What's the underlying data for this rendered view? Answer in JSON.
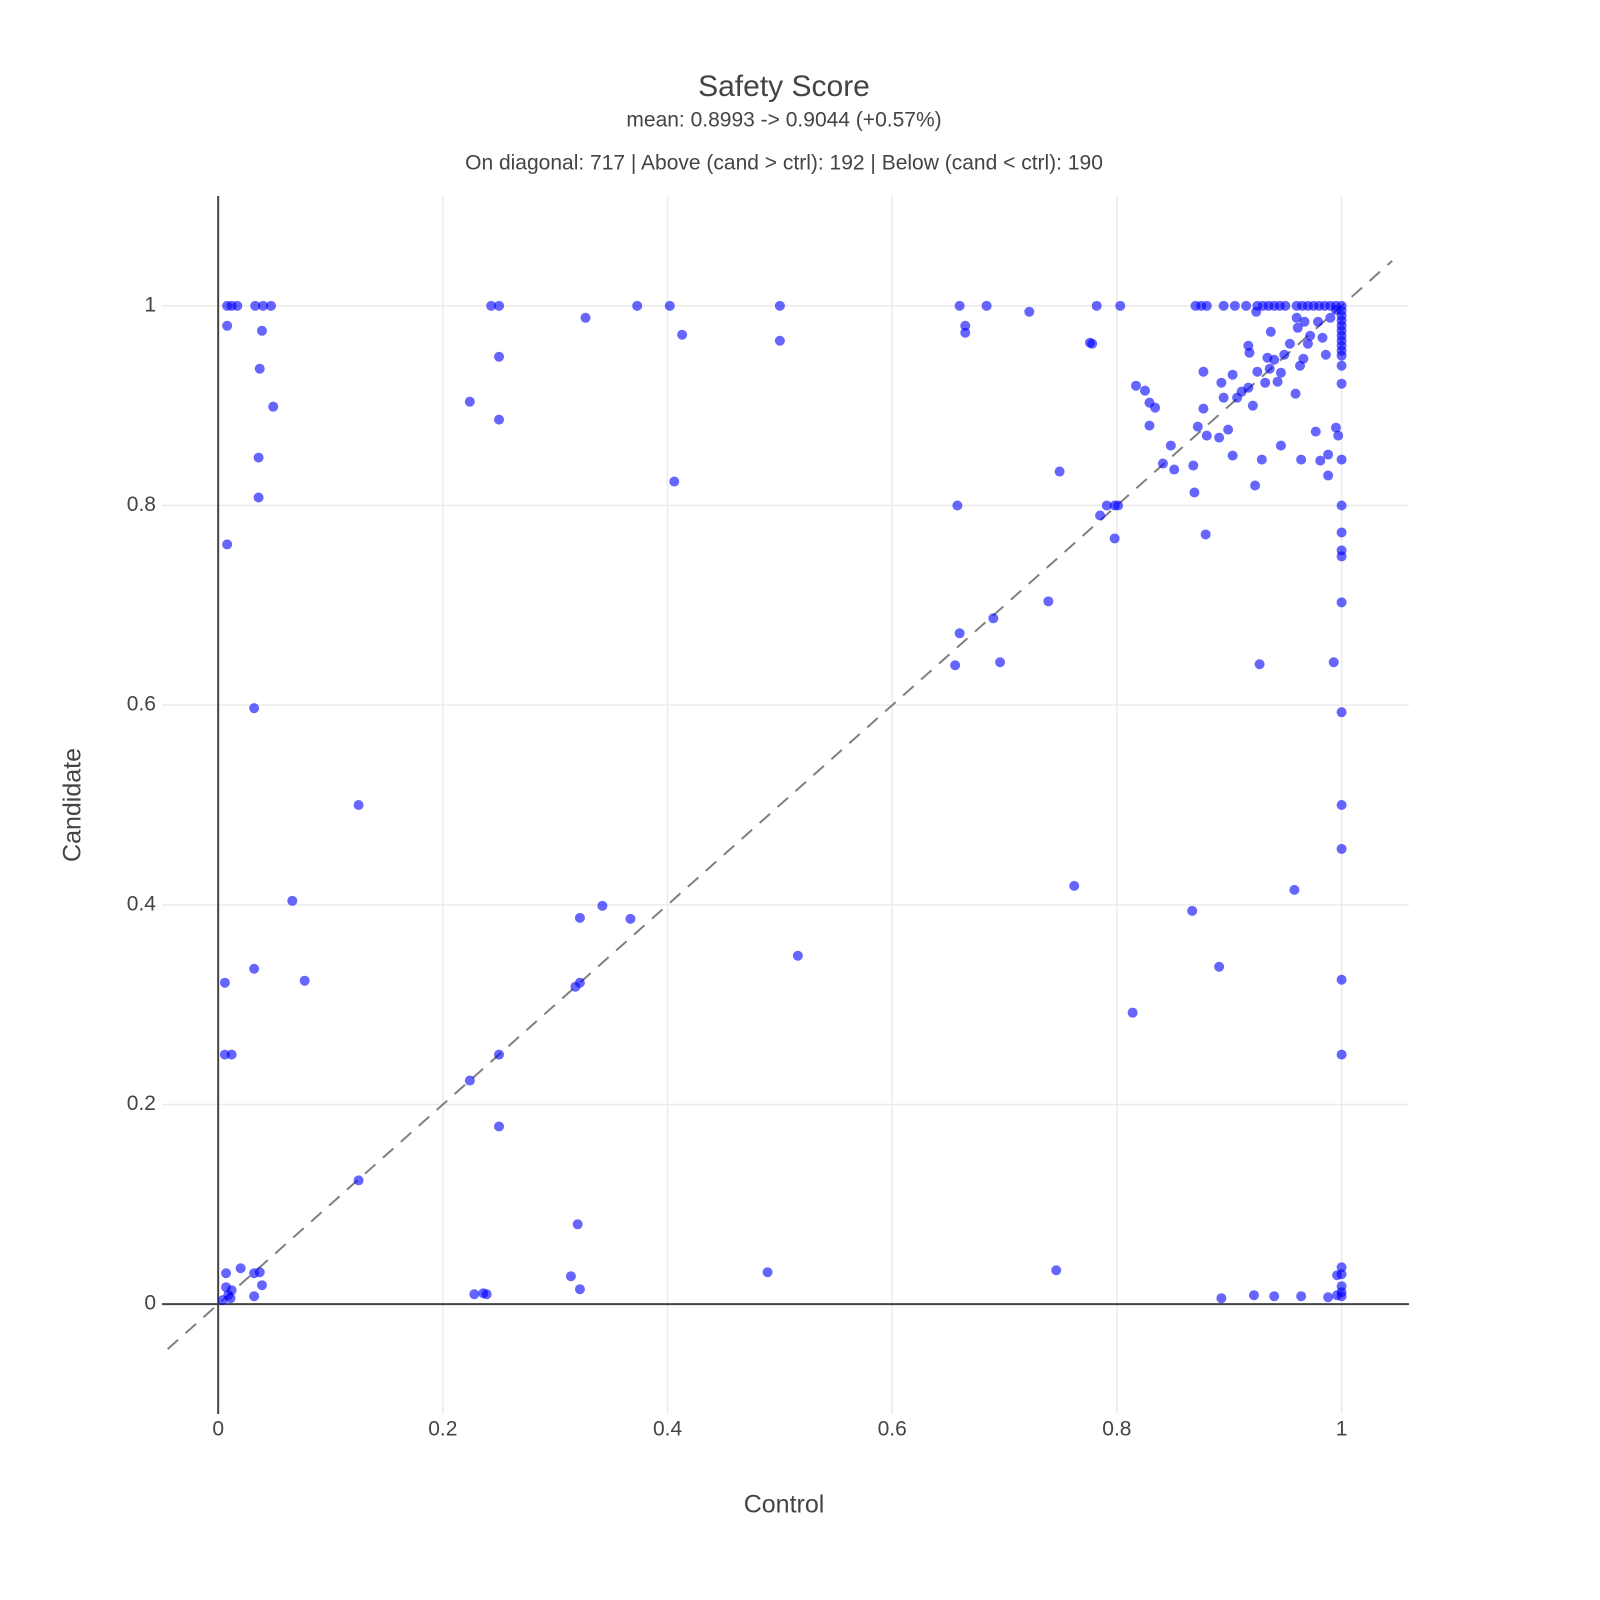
{
  "chart_data": {
    "type": "scatter",
    "title": "Safety Score",
    "subtitle": "mean: 0.8993 -> 0.9044 (+0.57%)",
    "annotation": "On diagonal: 717 | Above (cand > ctrl): 192 | Below (cand < ctrl): 190",
    "x_label": "Control",
    "y_label": "Candidate",
    "xlim": [
      -0.05,
      1.06
    ],
    "ylim": [
      -0.11,
      1.11
    ],
    "xticks": [
      0,
      0.2,
      0.4,
      0.6,
      0.8,
      1
    ],
    "yticks": [
      0,
      0.2,
      0.4,
      0.6,
      0.8,
      1
    ],
    "grid": true,
    "reference_line": {
      "x": [
        -0.045,
        1.045
      ],
      "y": [
        -0.045,
        1.045
      ],
      "color": "#808080"
    },
    "series": [
      {
        "color": "#0000ff",
        "x": [
          0.008,
          0.012,
          0.017,
          0.033,
          0.04,
          0.047,
          0.243,
          0.25,
          0.373,
          0.402,
          0.5,
          0.66,
          0.684,
          0.782,
          0.803,
          0.87,
          0.875,
          0.88,
          0.895,
          0.905,
          0.915,
          0.925,
          0.93,
          0.935,
          0.94,
          0.945,
          0.95,
          0.96,
          0.965,
          0.97,
          0.975,
          0.98,
          0.985,
          0.99,
          0.995,
          1,
          1,
          1,
          1,
          1,
          1,
          1,
          1,
          1,
          1,
          1,
          1,
          1,
          1,
          1,
          1,
          1,
          1,
          1,
          1,
          1,
          1,
          1,
          1,
          1,
          1,
          1,
          1,
          1,
          0.008,
          0.039,
          0.037,
          0.049,
          0.036,
          0.036,
          0.008,
          0.032,
          0.125,
          0.066,
          0.032,
          0.077,
          0.006,
          0.006,
          0.012,
          0.125,
          0.02,
          0.007,
          0.032,
          0.037,
          0.039,
          0.032,
          0.007,
          0.009,
          0.004,
          0.012,
          0.011,
          0.327,
          0.25,
          0.224,
          0.25,
          0.413,
          0.406,
          0.5,
          0.665,
          0.665,
          0.722,
          0.776,
          0.778,
          0.749,
          0.658,
          0.785,
          0.791,
          0.798,
          0.801,
          0.798,
          0.739,
          0.66,
          0.69,
          0.656,
          0.696,
          0.817,
          0.825,
          0.829,
          0.834,
          0.829,
          0.848,
          0.841,
          0.851,
          0.868,
          0.869,
          0.872,
          0.88,
          0.877,
          0.877,
          0.879,
          0.891,
          0.899,
          0.903,
          0.893,
          0.895,
          0.903,
          0.907,
          0.911,
          0.917,
          0.921,
          0.923,
          0.929,
          0.927,
          0.917,
          0.918,
          0.925,
          0.932,
          0.934,
          0.936,
          0.94,
          0.943,
          0.946,
          0.949,
          0.946,
          0.954,
          0.959,
          0.963,
          0.964,
          0.966,
          0.97,
          0.977,
          0.981,
          0.988,
          0.988,
          0.995,
          0.997,
          0.986,
          0.993,
          0.924,
          0.937,
          0.961,
          0.972,
          0.979,
          0.983,
          0.99,
          0.995,
          0.96,
          0.967,
          0.762,
          0.958,
          0.867,
          0.891,
          0.814,
          0.516,
          0.322,
          0.342,
          0.367,
          0.318,
          0.322,
          0.25,
          0.224,
          0.25,
          0.32,
          0.314,
          0.322,
          0.228,
          0.236,
          0.239,
          0.489,
          0.746,
          0.893,
          0.922,
          0.94,
          0.964,
          0.988,
          0.996,
          0.996
        ],
        "y": [
          1,
          1,
          1,
          1,
          1,
          1,
          1,
          1,
          1,
          1,
          1,
          1,
          1,
          1,
          1,
          1,
          1,
          1,
          1,
          1,
          1,
          1,
          1,
          1,
          1,
          1,
          1,
          1,
          1,
          1,
          1,
          1,
          1,
          1,
          1,
          1,
          0.995,
          0.99,
          0.985,
          0.98,
          0.975,
          0.97,
          0.965,
          0.96,
          0.955,
          0.95,
          0.94,
          0.922,
          0.846,
          0.8,
          0.773,
          0.755,
          0.749,
          0.703,
          0.593,
          0.5,
          0.456,
          0.325,
          0.25,
          0.037,
          0.03,
          0.018,
          0.012,
          0.008,
          0.98,
          0.975,
          0.937,
          0.899,
          0.848,
          0.808,
          0.761,
          0.597,
          0.5,
          0.404,
          0.336,
          0.324,
          0.322,
          0.25,
          0.25,
          0.124,
          0.036,
          0.031,
          0.031,
          0.032,
          0.019,
          0.008,
          0.017,
          0.009,
          0.004,
          0.014,
          0.006,
          0.988,
          0.949,
          0.904,
          0.886,
          0.971,
          0.824,
          0.965,
          0.98,
          0.973,
          0.994,
          0.963,
          0.962,
          0.834,
          0.8,
          0.79,
          0.8,
          0.8,
          0.8,
          0.767,
          0.704,
          0.672,
          0.687,
          0.64,
          0.643,
          0.92,
          0.915,
          0.903,
          0.898,
          0.88,
          0.86,
          0.842,
          0.836,
          0.84,
          0.813,
          0.879,
          0.87,
          0.897,
          0.934,
          0.771,
          0.868,
          0.876,
          0.85,
          0.923,
          0.908,
          0.931,
          0.908,
          0.914,
          0.918,
          0.9,
          0.82,
          0.846,
          0.641,
          0.96,
          0.953,
          0.934,
          0.923,
          0.948,
          0.937,
          0.946,
          0.924,
          0.933,
          0.951,
          0.86,
          0.962,
          0.912,
          0.94,
          0.846,
          0.947,
          0.962,
          0.874,
          0.845,
          0.851,
          0.83,
          0.878,
          0.87,
          0.951,
          0.643,
          0.994,
          0.974,
          0.978,
          0.97,
          0.984,
          0.968,
          0.988,
          0.996,
          0.988,
          0.984,
          0.419,
          0.415,
          0.394,
          0.338,
          0.292,
          0.349,
          0.387,
          0.399,
          0.386,
          0.318,
          0.322,
          0.25,
          0.224,
          0.178,
          0.08,
          0.028,
          0.015,
          0.01,
          0.011,
          0.01,
          0.032,
          0.034,
          0.006,
          0.009,
          0.008,
          0.008,
          0.007,
          0.009,
          0.029
        ]
      }
    ]
  }
}
